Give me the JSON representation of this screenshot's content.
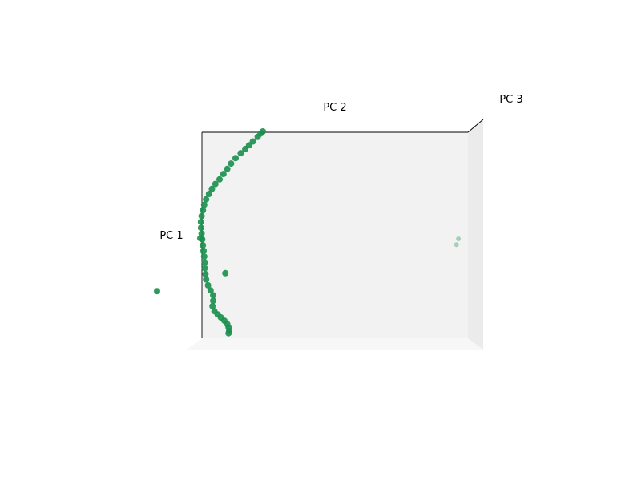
{
  "chart_data": {
    "type": "scatter",
    "projection": "3d",
    "xlabel": "PC 2",
    "ylabel": "PC 1",
    "zlabel": "PC 3",
    "grid": false,
    "colors": {
      "marker": "#1a8f4d",
      "pane_back": "#f2f2f2",
      "pane_side": "#ebebeb",
      "pane_floor": "#f7f7f7",
      "axis_line": "#000000"
    },
    "series": [
      {
        "x": [
          -2.25,
          -2.32,
          -2.41,
          -2.56,
          -2.68,
          -2.8,
          -2.94,
          -3.1,
          -3.24,
          -3.36,
          -3.48,
          -3.6,
          -3.73,
          -3.84,
          -3.93,
          -4.02,
          -4.08,
          -4.12,
          -4.16,
          -4.18,
          -4.18,
          -4.16,
          -4.14,
          -4.12,
          -4.1,
          -4.08,
          -4.06,
          -4.06,
          -4.04,
          -4.02,
          -3.96,
          -3.88,
          -3.8,
          -3.8,
          -3.82,
          -3.76,
          -3.66,
          -3.56,
          -3.45,
          -3.36,
          -3.32,
          -3.3,
          -3.32,
          -3.42,
          -4.2,
          -5.55
        ],
        "y": [
          2.48,
          2.43,
          2.35,
          2.24,
          2.15,
          2.06,
          1.96,
          1.84,
          1.71,
          1.58,
          1.46,
          1.33,
          1.22,
          1.1,
          0.98,
          0.85,
          0.72,
          0.59,
          0.45,
          0.31,
          0.17,
          0.03,
          -0.11,
          -0.25,
          -0.38,
          -0.52,
          -0.66,
          -0.8,
          -0.94,
          -1.07,
          -1.21,
          -1.33,
          -1.45,
          -1.58,
          -1.71,
          -1.83,
          -1.91,
          -1.98,
          -2.06,
          -2.14,
          -2.22,
          -2.3,
          -2.36,
          -0.92,
          -0.08,
          -1.35
        ],
        "z": [
          0,
          0,
          0,
          0,
          0,
          0,
          0,
          0,
          0,
          0,
          0,
          0,
          0,
          0,
          0,
          0,
          0,
          0,
          0,
          0,
          0,
          0,
          0,
          0,
          0,
          0,
          0,
          0,
          0,
          0,
          0,
          0,
          0,
          0,
          0,
          0,
          0,
          0,
          0,
          0,
          0,
          0,
          0,
          0,
          0,
          0
        ]
      },
      {
        "x": [
          3.38,
          3.32
        ],
        "y": [
          0.21,
          0.07
        ],
        "z": [
          -3.0,
          -3.0
        ]
      }
    ]
  }
}
